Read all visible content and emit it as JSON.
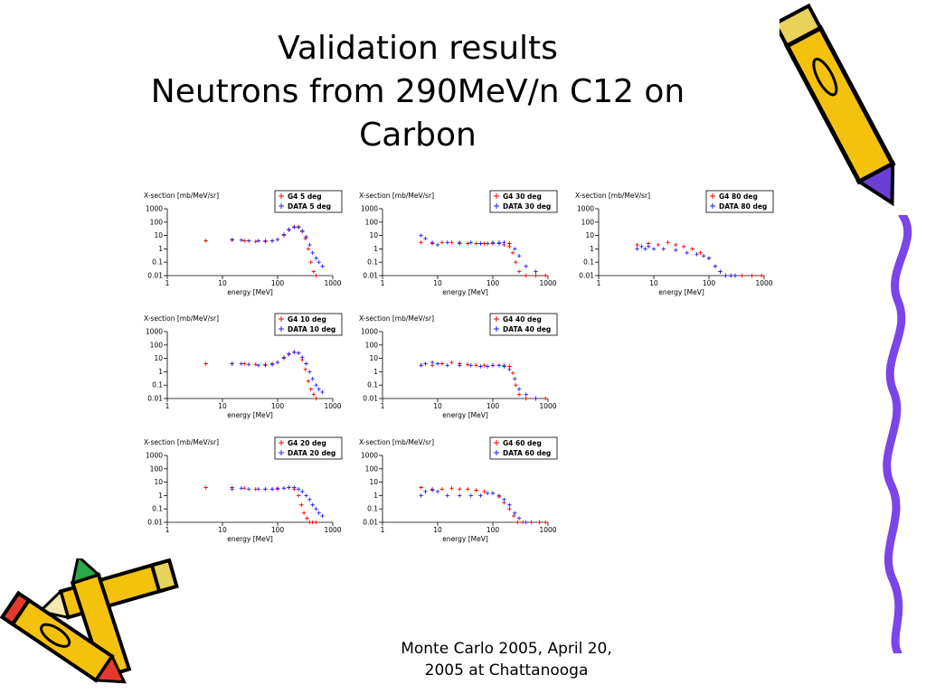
{
  "slide": {
    "title_line1": "Validation results",
    "title_line2": "Neutrons from 290MeV/n C12 on",
    "title_line3": "Carbon",
    "footer_line1": "Monte Carlo 2005, April 20,",
    "footer_line2": "2005 at Chattanooga"
  },
  "colors": {
    "g4": "#ff0000",
    "data": "#2222ff",
    "axis": "#000000"
  },
  "decorations": [
    "pencil-clipart-top-right",
    "pencils-clipart-bottom-left",
    "wavy-border-right"
  ],
  "chart_data": [
    {
      "type": "scatter",
      "ylabel": "X-section [mb/MeV/sr]",
      "xlabel": "energy [MeV]",
      "xlog": true,
      "ylog": true,
      "xlim": [
        1,
        1000
      ],
      "ylim": [
        0.01,
        1000
      ],
      "xticks": [
        "1",
        "10",
        "100",
        "1000"
      ],
      "yticks": [
        "0.01",
        "0.1",
        "1",
        "10",
        "100",
        "1000"
      ],
      "legend_position": "top-right",
      "series": [
        {
          "name": "G4   5 deg",
          "x": [
            5,
            15,
            25,
            40,
            60,
            80,
            100,
            130,
            160,
            200,
            240,
            280,
            320,
            360,
            400,
            450,
            500
          ],
          "y": [
            4,
            4.5,
            4,
            3.5,
            4,
            4,
            5,
            10,
            25,
            45,
            45,
            20,
            6,
            1,
            0.1,
            0.02,
            0.01
          ]
        },
        {
          "name": "DATA 5 deg",
          "x": [
            15,
            22,
            30,
            45,
            60,
            80,
            100,
            130,
            160,
            200,
            240,
            280,
            330,
            380,
            430,
            500,
            560,
            650
          ],
          "y": [
            5,
            4.5,
            4,
            4,
            3.5,
            4,
            5,
            12,
            28,
            40,
            40,
            22,
            8,
            2,
            0.5,
            0.2,
            0.1,
            0.05
          ]
        }
      ]
    },
    {
      "type": "scatter",
      "ylabel": "X-section [mb/MeV/sr]",
      "xlabel": "energy [MeV]",
      "xlog": true,
      "ylog": true,
      "xlim": [
        1,
        1000
      ],
      "ylim": [
        0.01,
        1000
      ],
      "xticks": [
        "1",
        "10",
        "100",
        "1000"
      ],
      "yticks": [
        "0.01",
        "0.1",
        "1",
        "10",
        "100",
        "1000"
      ],
      "legend_position": "top-right",
      "series": [
        {
          "name": "G4  10 deg",
          "x": [
            5,
            15,
            25,
            40,
            60,
            80,
            100,
            130,
            160,
            200,
            240,
            280,
            320,
            360,
            400,
            450,
            500
          ],
          "y": [
            4,
            4,
            4,
            3.5,
            3.5,
            4,
            5,
            10,
            20,
            30,
            25,
            8,
            1.5,
            0.2,
            0.05,
            0.02,
            0.01
          ]
        },
        {
          "name": "DATA 10 deg",
          "x": [
            15,
            22,
            30,
            45,
            60,
            80,
            100,
            130,
            160,
            200,
            240,
            280,
            330,
            380,
            430,
            500,
            560,
            650
          ],
          "y": [
            4,
            4,
            3.5,
            3,
            3,
            3.5,
            5,
            12,
            22,
            28,
            25,
            12,
            4,
            1,
            0.3,
            0.1,
            0.05,
            0.03
          ]
        }
      ]
    },
    {
      "type": "scatter",
      "ylabel": "X-section [mb/MeV/sr]",
      "xlabel": "energy [MeV]",
      "xlog": true,
      "ylog": true,
      "xlim": [
        1,
        1000
      ],
      "ylim": [
        0.01,
        1000
      ],
      "xticks": [
        "1",
        "10",
        "100",
        "1000"
      ],
      "yticks": [
        "0.01",
        "0.1",
        "1",
        "10",
        "100",
        "1000"
      ],
      "legend_position": "top-right",
      "series": [
        {
          "name": "G4   20 deg",
          "x": [
            5,
            15,
            25,
            40,
            60,
            80,
            100,
            130,
            160,
            200,
            240,
            270,
            300,
            340,
            380,
            430,
            500
          ],
          "y": [
            4,
            4,
            3.5,
            3,
            3,
            3,
            3,
            3.5,
            4,
            3,
            1,
            0.2,
            0.05,
            0.02,
            0.01,
            0.01,
            0.01
          ]
        },
        {
          "name": "DATA 20 deg",
          "x": [
            15,
            22,
            30,
            45,
            60,
            80,
            100,
            130,
            160,
            200,
            240,
            280,
            330,
            380,
            430,
            500,
            560,
            650
          ],
          "y": [
            3,
            3.5,
            3,
            3,
            3,
            3,
            3.5,
            3.5,
            4,
            4,
            3,
            2,
            1,
            0.5,
            0.2,
            0.1,
            0.05,
            0.03
          ]
        }
      ]
    },
    {
      "type": "scatter",
      "ylabel": "X-section [mb/MeV/sr]",
      "xlabel": "energy [MeV]",
      "xlog": true,
      "ylog": true,
      "xlim": [
        1,
        1000
      ],
      "ylim": [
        0.01,
        1000
      ],
      "xticks": [
        "1",
        "10",
        "100",
        "1000"
      ],
      "yticks": [
        "0.01",
        "0.1",
        "1",
        "10",
        "100",
        "1000"
      ],
      "legend_position": "top-right",
      "series": [
        {
          "name": "G4  30 deg",
          "x": [
            5,
            8,
            12,
            18,
            25,
            35,
            50,
            70,
            100,
            130,
            160,
            200,
            230,
            260,
            300,
            400,
            600,
            900
          ],
          "y": [
            3,
            2.5,
            3,
            3,
            2.5,
            2.5,
            2.5,
            2.5,
            2.5,
            2.5,
            2,
            1.5,
            0.5,
            0.1,
            0.02,
            0.01,
            0.01,
            0.01
          ]
        },
        {
          "name": "DATA 30 deg",
          "x": [
            5,
            6,
            8,
            10,
            15,
            25,
            40,
            60,
            80,
            100,
            130,
            160,
            200,
            250,
            300,
            400,
            600
          ],
          "y": [
            10,
            6,
            3,
            2,
            3,
            3,
            3,
            2.5,
            2.5,
            3,
            3,
            3,
            2.5,
            1,
            0.3,
            0.05,
            0.02
          ]
        }
      ]
    },
    {
      "type": "scatter",
      "ylabel": "X-section [mb/MeV/sr]",
      "xlabel": "energy [MeV]",
      "xlog": true,
      "ylog": true,
      "xlim": [
        1,
        1000
      ],
      "ylim": [
        0.01,
        1000
      ],
      "xticks": [
        "1",
        "10",
        "100",
        "1000"
      ],
      "yticks": [
        "0.01",
        "0.1",
        "1",
        "10",
        "100",
        "1000"
      ],
      "legend_position": "top-right",
      "series": [
        {
          "name": "G4  40 deg",
          "x": [
            5,
            8,
            12,
            18,
            25,
            35,
            50,
            70,
            100,
            130,
            160,
            200,
            230,
            260,
            300,
            400,
            600,
            900
          ],
          "y": [
            3,
            3,
            4,
            5,
            4,
            3.5,
            3,
            3,
            3,
            3,
            3,
            2.5,
            0.8,
            0.1,
            0.02,
            0.01,
            0.01,
            0.01
          ]
        },
        {
          "name": "DATA 40 deg",
          "x": [
            5,
            6,
            8,
            10,
            15,
            25,
            40,
            60,
            80,
            100,
            130,
            160,
            200,
            250,
            300,
            400,
            600
          ],
          "y": [
            3,
            4,
            5,
            4,
            3,
            3,
            3,
            2.5,
            2.5,
            3,
            3,
            2.5,
            1.5,
            0.3,
            0.05,
            0.02,
            0.01
          ]
        }
      ]
    },
    {
      "type": "scatter",
      "ylabel": "X-section [mb/MeV/sr]",
      "xlabel": "energy [MeV]",
      "xlog": true,
      "ylog": true,
      "xlim": [
        1,
        1000
      ],
      "ylim": [
        0.01,
        1000
      ],
      "xticks": [
        "1",
        "10",
        "100",
        "1000"
      ],
      "yticks": [
        "0.01",
        "0.1",
        "1",
        "10",
        "100",
        "1000"
      ],
      "legend_position": "top-right",
      "series": [
        {
          "name": "G4  60 deg",
          "x": [
            5,
            8,
            12,
            18,
            25,
            35,
            50,
            70,
            100,
            130,
            160,
            200,
            240,
            280,
            350,
            500,
            700,
            900
          ],
          "y": [
            4,
            3,
            3,
            3.5,
            3,
            3,
            2.5,
            2,
            1.5,
            0.8,
            0.3,
            0.1,
            0.03,
            0.01,
            0.01,
            0.01,
            0.01,
            0.01
          ]
        },
        {
          "name": "DATA 60 deg",
          "x": [
            5,
            6,
            8,
            10,
            15,
            25,
            40,
            60,
            80,
            100,
            130,
            160,
            200,
            250,
            300,
            400
          ],
          "y": [
            1,
            2,
            2.5,
            2,
            1,
            1,
            1,
            1,
            1.5,
            1.5,
            1,
            0.5,
            0.2,
            0.05,
            0.02,
            0.01
          ]
        }
      ]
    },
    {
      "type": "scatter",
      "ylabel": "X-section [mb/MeV/sr]",
      "xlabel": "energy [MeV]",
      "xlog": true,
      "ylog": true,
      "xlim": [
        1,
        1000
      ],
      "ylim": [
        0.01,
        1000
      ],
      "xticks": [
        "1",
        "10",
        "100",
        "1000"
      ],
      "yticks": [
        "0.01",
        "0.1",
        "1",
        "10",
        "100",
        "1000"
      ],
      "legend_position": "top-right",
      "series": [
        {
          "name": "G4  80 deg",
          "x": [
            5,
            8,
            12,
            18,
            25,
            35,
            50,
            70,
            100,
            130,
            160,
            200,
            250,
            300,
            400,
            600,
            900
          ],
          "y": [
            2,
            2.5,
            2,
            3,
            2,
            1.5,
            1,
            0.5,
            0.2,
            0.05,
            0.02,
            0.01,
            0.01,
            0.01,
            0.01,
            0.01,
            0.01
          ]
        },
        {
          "name": "DATA 80 deg",
          "x": [
            5,
            6,
            7,
            8,
            10,
            15,
            25,
            40,
            60,
            80,
            100,
            130,
            160,
            200,
            250,
            300
          ],
          "y": [
            1,
            1.5,
            1,
            1.5,
            1,
            1,
            0.8,
            0.5,
            0.4,
            0.3,
            0.2,
            0.05,
            0.02,
            0.01,
            0.01,
            0.01
          ]
        }
      ]
    }
  ]
}
